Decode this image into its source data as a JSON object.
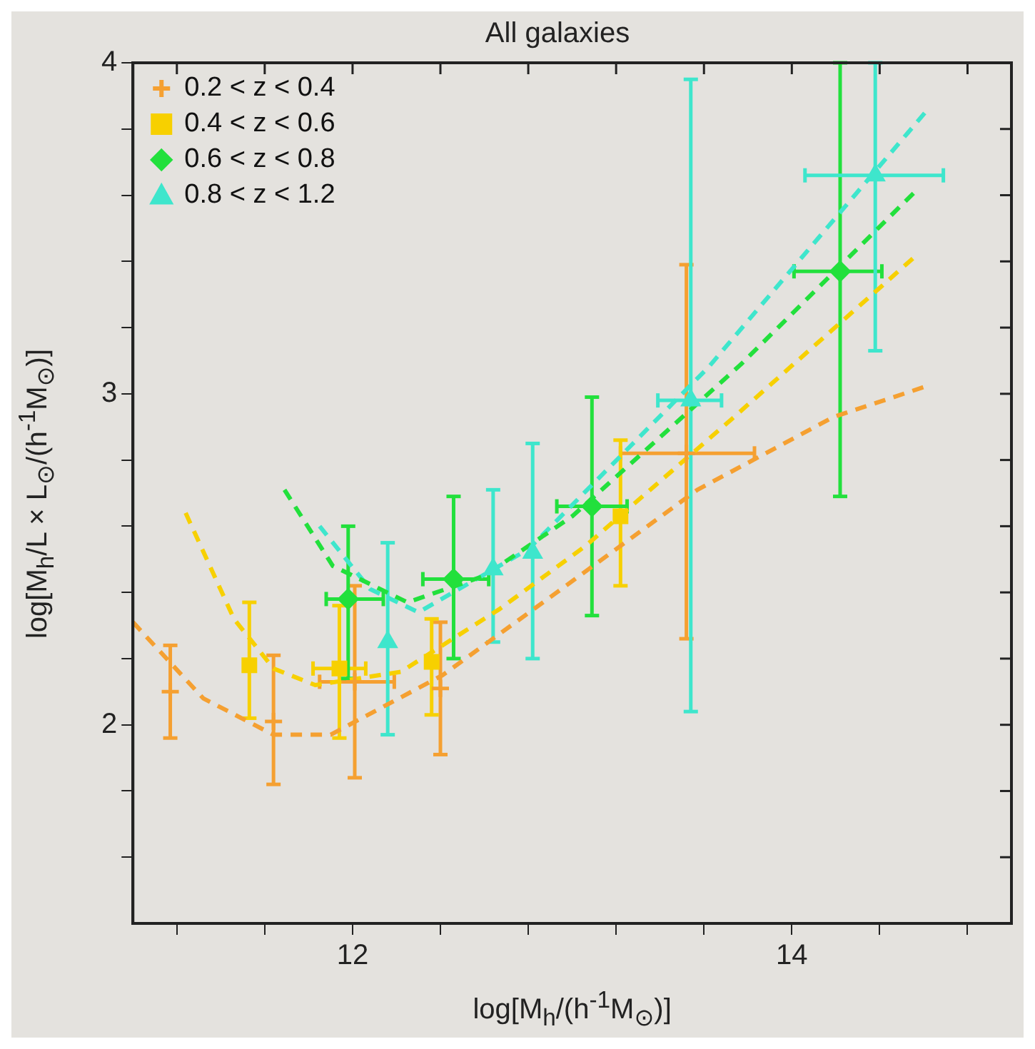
{
  "chart_data": {
    "type": "scatter",
    "title": "All galaxies",
    "xlabel": "log[M$_{h}$/(h$^{-1}$M$_{⊙}$)]",
    "ylabel": "log[M$_{h}$/L × L$_{⊙}$/(h$^{-1}$M$_{⊙}$)]",
    "xlim": [
      11,
      15
    ],
    "ylim": [
      1.4,
      4
    ],
    "xticks": [
      {
        "value": 11.2,
        "label": null
      },
      {
        "value": 11.6,
        "label": null
      },
      12,
      {
        "value": 12.4,
        "label": null
      },
      {
        "value": 12.8,
        "label": null
      },
      {
        "value": 13.2,
        "label": null
      },
      {
        "value": 13.6,
        "label": null
      },
      14,
      {
        "value": 14.4,
        "label": null
      },
      {
        "value": 14.8,
        "label": null
      }
    ],
    "yticks": [
      {
        "value": 1.6,
        "label": null
      },
      {
        "value": 1.8,
        "label": null
      },
      2,
      {
        "value": 2.2,
        "label": null
      },
      {
        "value": 2.4,
        "label": null
      },
      {
        "value": 2.6,
        "label": null
      },
      {
        "value": 2.8,
        "label": null
      },
      3,
      {
        "value": 3.2,
        "label": null
      },
      {
        "value": 3.4,
        "label": null
      },
      {
        "value": 3.6,
        "label": null
      },
      {
        "value": 3.8,
        "label": null
      },
      4
    ],
    "legend": "top left",
    "series": [
      {
        "name": "0.2 < z < 0.4",
        "color": "#f5a031",
        "marker": "cross",
        "x": [
          11.17,
          11.64,
          12.01,
          12.4,
          13.52
        ],
        "values": [
          2.1,
          2.01,
          2.13,
          2.11,
          2.82
        ],
        "errors": [
          [
            1.96,
            2.24
          ],
          [
            1.82,
            2.21
          ],
          [
            1.84,
            2.42
          ],
          [
            1.91,
            2.31
          ],
          [
            2.26,
            3.39
          ]
        ],
        "xerrors": [
          null,
          null,
          [
            11.85,
            12.19
          ],
          null,
          [
            13.22,
            13.83
          ]
        ]
      },
      {
        "name": "0.4 < z < 0.6",
        "color": "#f7d000",
        "marker": "square",
        "x": [
          11.53,
          11.94,
          12.36,
          13.22
        ],
        "values": [
          2.18,
          2.17,
          2.19,
          2.63
        ],
        "errors": [
          [
            2.02,
            2.37
          ],
          [
            1.96,
            2.36
          ],
          [
            2.03,
            2.32
          ],
          [
            2.42,
            2.86
          ]
        ],
        "xerrors": [
          null,
          [
            11.82,
            12.06
          ],
          null,
          null
        ]
      },
      {
        "name": "0.6 < z < 0.8",
        "color": "#22e03c",
        "marker": "diamond",
        "x": [
          11.98,
          12.46,
          13.09,
          14.22
        ],
        "values": [
          2.38,
          2.44,
          2.66,
          3.37
        ],
        "errors": [
          [
            2.14,
            2.6
          ],
          [
            2.2,
            2.69
          ],
          [
            2.33,
            2.99
          ],
          [
            2.69,
            4.0
          ]
        ],
        "xerrors": [
          [
            11.88,
            12.14
          ],
          [
            12.32,
            12.62
          ],
          [
            12.93,
            13.25
          ],
          [
            14.01,
            14.41
          ]
        ]
      },
      {
        "name": "0.8 < z < 1.2",
        "color": "#3ee6cc",
        "marker": "triangle",
        "x": [
          12.16,
          12.64,
          12.82,
          13.54,
          14.38
        ],
        "values": [
          2.25,
          2.47,
          2.52,
          2.98,
          3.66
        ],
        "errors": [
          [
            1.97,
            2.55
          ],
          [
            2.25,
            2.71
          ],
          [
            2.2,
            2.85
          ],
          [
            2.04,
            3.95
          ],
          [
            3.13,
            4.0
          ]
        ],
        "xerrors": [
          null,
          null,
          null,
          [
            13.39,
            13.68
          ],
          [
            14.06,
            14.69
          ]
        ]
      },
      {
        "type": "line",
        "color": "#f5a031",
        "line_style": "dashed",
        "marker": "none",
        "x": [
          11.0,
          11.32,
          11.64,
          11.9,
          12.41,
          12.93,
          13.57,
          14.19,
          14.6
        ],
        "values": [
          2.31,
          2.08,
          1.97,
          1.97,
          2.15,
          2.4,
          2.71,
          2.93,
          3.02
        ]
      },
      {
        "type": "line",
        "color": "#f7d000",
        "line_style": "dashed",
        "marker": "none",
        "x": [
          11.24,
          11.46,
          11.64,
          11.83,
          12.22,
          12.67,
          13.06,
          13.72,
          14.57
        ],
        "values": [
          2.64,
          2.32,
          2.17,
          2.12,
          2.16,
          2.35,
          2.54,
          2.92,
          3.42
        ]
      },
      {
        "type": "line",
        "color": "#22e03c",
        "line_style": "dashed",
        "marker": "none",
        "x": [
          11.69,
          11.91,
          12.25,
          12.6,
          13.0,
          13.77,
          14.56
        ],
        "values": [
          2.71,
          2.48,
          2.37,
          2.45,
          2.63,
          3.09,
          3.61
        ]
      },
      {
        "type": "line",
        "color": "#3ee6cc",
        "line_style": "dashed",
        "marker": "none",
        "x": [
          11.85,
          12.08,
          12.3,
          12.8,
          13.62,
          14.62
        ],
        "values": [
          2.6,
          2.41,
          2.34,
          2.53,
          3.08,
          3.86
        ]
      }
    ]
  }
}
